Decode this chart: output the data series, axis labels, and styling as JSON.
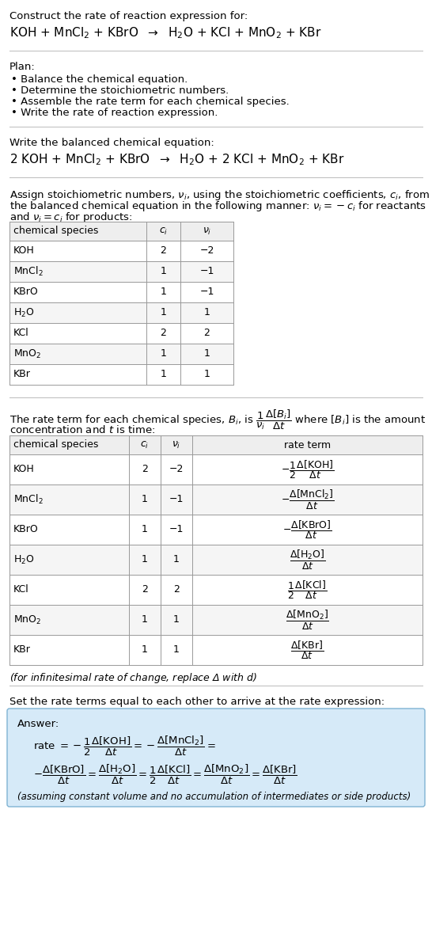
{
  "title_line1": "Construct the rate of reaction expression for:",
  "eq_unbalanced": "KOH + MnCl$_2$ + KBrO  $\\rightarrow$  H$_2$O + KCl + MnO$_2$ + KBr",
  "plan_header": "Plan:",
  "plan_items": [
    "• Balance the chemical equation.",
    "• Determine the stoichiometric numbers.",
    "• Assemble the rate term for each chemical species.",
    "• Write the rate of reaction expression."
  ],
  "balanced_header": "Write the balanced chemical equation:",
  "eq_balanced": "2 KOH + MnCl$_2$ + KBrO  $\\rightarrow$  H$_2$O + 2 KCl + MnO$_2$ + KBr",
  "assign_text1": "Assign stoichiometric numbers, $\\nu_i$, using the stoichiometric coefficients, $c_i$, from",
  "assign_text2": "the balanced chemical equation in the following manner: $\\nu_i = -c_i$ for reactants",
  "assign_text3": "and $\\nu_i = c_i$ for products:",
  "t1_headers": [
    "chemical species",
    "$c_i$",
    "$\\nu_i$"
  ],
  "t1_rows": [
    [
      "KOH",
      "2",
      "−2"
    ],
    [
      "MnCl$_2$",
      "1",
      "−1"
    ],
    [
      "KBrO",
      "1",
      "−1"
    ],
    [
      "H$_2$O",
      "1",
      "1"
    ],
    [
      "KCl",
      "2",
      "2"
    ],
    [
      "MnO$_2$",
      "1",
      "1"
    ],
    [
      "KBr",
      "1",
      "1"
    ]
  ],
  "rate_text1": "The rate term for each chemical species, $B_i$, is $\\dfrac{1}{\\nu_i}\\dfrac{\\Delta[B_i]}{\\Delta t}$ where $[B_i]$ is the amount",
  "rate_text2": "concentration and $t$ is time:",
  "t2_headers": [
    "chemical species",
    "$c_i$",
    "$\\nu_i$",
    "rate term"
  ],
  "t2_rows": [
    [
      "KOH",
      "2",
      "−2"
    ],
    [
      "MnCl$_2$",
      "1",
      "−1"
    ],
    [
      "KBrO",
      "1",
      "−1"
    ],
    [
      "H$_2$O",
      "1",
      "1"
    ],
    [
      "KCl",
      "2",
      "2"
    ],
    [
      "MnO$_2$",
      "1",
      "1"
    ],
    [
      "KBr",
      "1",
      "1"
    ]
  ],
  "t2_rate_terms": [
    "$-\\dfrac{1}{2}\\dfrac{\\Delta[\\mathrm{KOH}]}{\\Delta t}$",
    "$-\\dfrac{\\Delta[\\mathrm{MnCl}_2]}{\\Delta t}$",
    "$-\\dfrac{\\Delta[\\mathrm{KBrO}]}{\\Delta t}$",
    "$\\dfrac{\\Delta[\\mathrm{H}_2\\mathrm{O}]}{\\Delta t}$",
    "$\\dfrac{1}{2}\\dfrac{\\Delta[\\mathrm{KCl}]}{\\Delta t}$",
    "$\\dfrac{\\Delta[\\mathrm{MnO}_2]}{\\Delta t}$",
    "$\\dfrac{\\Delta[\\mathrm{KBr}]}{\\Delta t}$"
  ],
  "note": "(for infinitesimal rate of change, replace Δ with $d$)",
  "set_text": "Set the rate terms equal to each other to arrive at the rate expression:",
  "answer_label": "Answer:",
  "ans_line1": "rate $= -\\dfrac{1}{2}\\dfrac{\\Delta[\\mathrm{KOH}]}{\\Delta t} = -\\dfrac{\\Delta[\\mathrm{MnCl}_2]}{\\Delta t} =$",
  "ans_line2": "$-\\dfrac{\\Delta[\\mathrm{KBrO}]}{\\Delta t} = \\dfrac{\\Delta[\\mathrm{H}_2\\mathrm{O}]}{\\Delta t} = \\dfrac{1}{2}\\dfrac{\\Delta[\\mathrm{KCl}]}{\\Delta t} = \\dfrac{\\Delta[\\mathrm{MnO}_2]}{\\Delta t} = \\dfrac{\\Delta[\\mathrm{KBr}]}{\\Delta t}$",
  "footnote": "(assuming constant volume and no accumulation of intermediates or side products)",
  "bg": "#ffffff",
  "tc": "#000000",
  "tbc": "#999999",
  "hdr_bg": "#eeeeee",
  "ans_bg": "#d6eaf8",
  "ans_border": "#7fb3d3"
}
